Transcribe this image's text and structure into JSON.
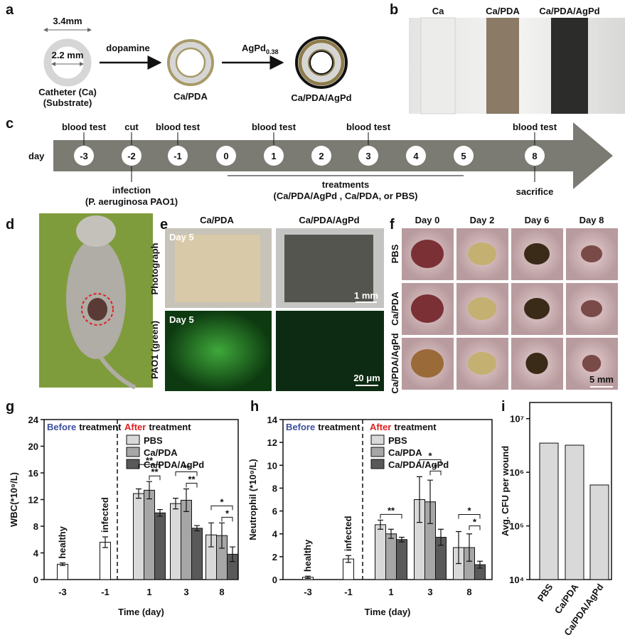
{
  "panel_a": {
    "label": "a",
    "outer_diameter": "3.4mm",
    "inner_diameter": "2.2 mm",
    "step1": "dopamine",
    "step2": [
      "AgPd",
      "0.38"
    ],
    "substrate": [
      "Catheter (Ca)",
      "(Substrate)"
    ],
    "product1": "Ca/PDA",
    "product2": "Ca/PDA/AgPd"
  },
  "panel_b": {
    "label": "b",
    "samples": [
      "Ca",
      "Ca/PDA",
      "Ca/PDA/AgPd"
    ]
  },
  "panel_c": {
    "label": "c",
    "axis_label": "day",
    "days": [
      "-3",
      "-2",
      "-1",
      "0",
      "1",
      "2",
      "3",
      "4",
      "5",
      "8"
    ],
    "events_above": [
      "blood test",
      "cut",
      "blood test",
      "blood test",
      "blood test",
      "blood test"
    ],
    "infection": [
      "infection",
      "(P. aeruginosa PAO1)"
    ],
    "treatments": [
      "treatments",
      "(Ca/PDA/AgPd , Ca/PDA, or PBS)"
    ],
    "end": "sacrifice"
  },
  "panel_d": {
    "label": "d"
  },
  "panel_e": {
    "label": "e",
    "columns": [
      "Ca/PDA",
      "Ca/PDA/AgPd"
    ],
    "rows": [
      "Photograph",
      "PAO1 (green)"
    ],
    "day": "Day 5",
    "scale_top": "1 mm",
    "scale_bottom": "20 μm"
  },
  "panel_f": {
    "label": "f",
    "columns": [
      "Day 0",
      "Day 2",
      "Day 6",
      "Day 8"
    ],
    "rows": [
      "PBS",
      "Ca/PDA",
      "Ca/PDA/AgPd"
    ],
    "scale": "5 mm"
  },
  "chart_data": [
    {
      "type": "bar",
      "panel_label": "g",
      "ylabel": "WBC(*10⁹/L)",
      "xlabel": "Time (day)",
      "categories": [
        "-3",
        "-1",
        "1",
        "3",
        "8"
      ],
      "ylim": [
        0,
        24
      ],
      "yticks": [
        0,
        4,
        8,
        12,
        16,
        20,
        24
      ],
      "before_label": [
        "Before",
        "treatment"
      ],
      "after_label": [
        "After",
        "treatment"
      ],
      "baseline": {
        "labels": [
          "healthy",
          "infected"
        ],
        "values": [
          2.3,
          5.6
        ],
        "errors": [
          0.2,
          0.8
        ],
        "color": "#ffffff"
      },
      "series": [
        {
          "name": "PBS",
          "color": "#d9d9d9",
          "values": [
            null,
            null,
            12.9,
            11.4,
            6.7
          ],
          "errors": [
            null,
            null,
            0.7,
            0.8,
            1.8
          ]
        },
        {
          "name": "Ca/PDA",
          "color": "#a6a6a6",
          "values": [
            null,
            null,
            13.4,
            11.9,
            6.6
          ],
          "errors": [
            null,
            null,
            1.3,
            1.7,
            1.9
          ]
        },
        {
          "name": "Ca/PDA/AgPd",
          "color": "#595959",
          "values": [
            null,
            null,
            10.0,
            7.7,
            3.8
          ],
          "errors": [
            null,
            null,
            0.5,
            0.4,
            1.1
          ]
        }
      ],
      "significance": [
        "**",
        "**",
        "**",
        "**",
        "*",
        "*"
      ]
    },
    {
      "type": "bar",
      "panel_label": "h",
      "ylabel": "Neutrophil (*10⁹/L)",
      "xlabel": "Time (day)",
      "categories": [
        "-3",
        "-1",
        "1",
        "3",
        "8"
      ],
      "ylim": [
        0,
        14
      ],
      "yticks": [
        0,
        2,
        4,
        6,
        8,
        10,
        12,
        14
      ],
      "before_label": [
        "Before",
        "treatment"
      ],
      "after_label": [
        "After",
        "treatment"
      ],
      "baseline": {
        "labels": [
          "healthy",
          "infected"
        ],
        "values": [
          0.2,
          1.8
        ],
        "errors": [
          0.1,
          0.3
        ],
        "color": "#ffffff"
      },
      "series": [
        {
          "name": "PBS",
          "color": "#d9d9d9",
          "values": [
            null,
            null,
            4.8,
            7.0,
            2.8
          ],
          "errors": [
            null,
            null,
            0.4,
            2.0,
            1.4
          ]
        },
        {
          "name": "Ca/PDA",
          "color": "#a6a6a6",
          "values": [
            null,
            null,
            4.0,
            6.8,
            2.8
          ],
          "errors": [
            null,
            null,
            0.4,
            1.9,
            1.2
          ]
        },
        {
          "name": "Ca/PDA/AgPd",
          "color": "#595959",
          "values": [
            null,
            null,
            3.5,
            3.7,
            1.3
          ],
          "errors": [
            null,
            null,
            0.2,
            0.7,
            0.3
          ]
        }
      ],
      "significance": [
        "**",
        "*",
        "*",
        "*",
        "*"
      ]
    },
    {
      "type": "bar",
      "panel_label": "i",
      "ylabel": "Avg. CFU per wound",
      "categories": [
        "PBS",
        "Ca/PDA",
        "Ca/PDA/AgPd"
      ],
      "values": [
        3500000,
        3200000,
        580000
      ],
      "color": "#d9d9d9",
      "log_scale": true,
      "ylim": [
        10000,
        20000000
      ],
      "yticks": [
        {
          "value": 10000,
          "label": "10⁴"
        },
        {
          "value": 100000,
          "label": "10⁵"
        },
        {
          "value": 1000000,
          "label": "10⁶"
        },
        {
          "value": 10000000,
          "label": "10⁷"
        }
      ]
    }
  ]
}
